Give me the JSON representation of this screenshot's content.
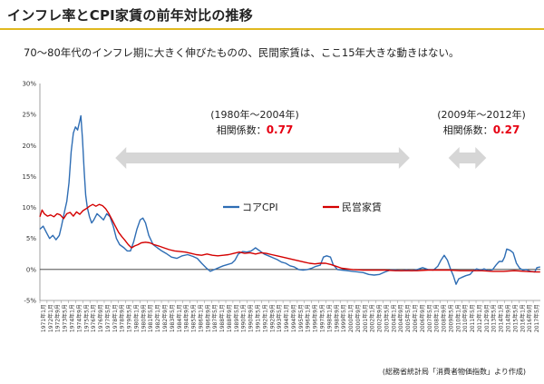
{
  "header": {
    "title": "インフレ率とCPI家賃の前年対比の推移",
    "subtitle": "70〜80年代のインフレ期に大きく伸びたものの、民間家賃は、ここ15年大きな動きはない。",
    "source": "(総務省統計局「消費者物価指数」より作成)"
  },
  "colors": {
    "title_rule": "#e0b81f",
    "core_cpi": "#2e6db4",
    "rent": "#d40000",
    "arrow": "#d6d6d6",
    "highlight": "#e60012"
  },
  "chart_data": {
    "type": "line",
    "ylim": [
      -5,
      30
    ],
    "yticks": [
      -5,
      0,
      5,
      10,
      15,
      20,
      25,
      30
    ],
    "ytick_labels": [
      "-5%",
      "0%",
      "5%",
      "10%",
      "15%",
      "20%",
      "25%",
      "30%"
    ],
    "xlim": [
      1971.0,
      2017.42
    ],
    "xtick_labels": [
      "1971年1月",
      "1972年1月",
      "1972年9月",
      "1973年5月",
      "1974年1月",
      "1974年9月",
      "1975年5月",
      "1976年1月",
      "1976年9月",
      "1977年5月",
      "1978年1月",
      "1978年9月",
      "1979年5月",
      "1980年1月",
      "1980年9月",
      "1981年5月",
      "1982年1月",
      "1982年9月",
      "1983年5月",
      "1984年1月",
      "1984年9月",
      "1985年5月",
      "1986年1月",
      "1986年9月",
      "1987年5月",
      "1988年1月",
      "1988年9月",
      "1989年5月",
      "1990年1月",
      "1990年9月",
      "1991年5月",
      "1992年1月",
      "1992年9月",
      "1993年5月",
      "1994年1月",
      "1994年9月",
      "1995年5月",
      "1996年1月",
      "1996年9月",
      "1997年5月",
      "1998年1月",
      "1998年9月",
      "1999年5月",
      "2000年1月",
      "2000年9月",
      "2001年5月",
      "2002年1月",
      "2002年9月",
      "2003年5月",
      "2004年1月",
      "2004年9月",
      "2005年5月",
      "2006年1月",
      "2006年9月",
      "2007年5月",
      "2008年1月",
      "2008年9月",
      "2009年5月",
      "2010年1月",
      "2010年9月",
      "2011年5月",
      "2012年1月",
      "2012年9月",
      "2013年5月",
      "2014年1月",
      "2014年9月",
      "2015年5月",
      "2016年1月",
      "2016年9月",
      "2017年5月"
    ],
    "series": [
      {
        "name": "コアCPI",
        "color": "#2e6db4",
        "points": [
          [
            1971.0,
            6.5
          ],
          [
            1971.3,
            7.0
          ],
          [
            1971.6,
            6.0
          ],
          [
            1971.9,
            5.0
          ],
          [
            1972.2,
            5.5
          ],
          [
            1972.5,
            4.8
          ],
          [
            1972.8,
            5.5
          ],
          [
            1973.0,
            7.0
          ],
          [
            1973.3,
            9.5
          ],
          [
            1973.5,
            11.0
          ],
          [
            1973.7,
            14.0
          ],
          [
            1973.9,
            19.0
          ],
          [
            1974.1,
            22.0
          ],
          [
            1974.3,
            23.0
          ],
          [
            1974.5,
            22.5
          ],
          [
            1974.7,
            24.0
          ],
          [
            1974.8,
            24.8
          ],
          [
            1974.95,
            21.0
          ],
          [
            1975.1,
            16.0
          ],
          [
            1975.25,
            12.0
          ],
          [
            1975.4,
            10.0
          ],
          [
            1975.6,
            8.5
          ],
          [
            1975.8,
            7.5
          ],
          [
            1976.0,
            8.0
          ],
          [
            1976.3,
            9.0
          ],
          [
            1976.6,
            8.5
          ],
          [
            1976.9,
            8.0
          ],
          [
            1977.2,
            9.0
          ],
          [
            1977.5,
            8.5
          ],
          [
            1977.8,
            7.0
          ],
          [
            1978.1,
            5.0
          ],
          [
            1978.4,
            4.0
          ],
          [
            1978.8,
            3.5
          ],
          [
            1979.1,
            3.0
          ],
          [
            1979.4,
            3.0
          ],
          [
            1979.7,
            4.5
          ],
          [
            1980.0,
            6.5
          ],
          [
            1980.3,
            8.0
          ],
          [
            1980.55,
            8.3
          ],
          [
            1980.8,
            7.5
          ],
          [
            1981.1,
            5.5
          ],
          [
            1981.5,
            4.0
          ],
          [
            1981.9,
            3.5
          ],
          [
            1982.3,
            3.0
          ],
          [
            1982.7,
            2.6
          ],
          [
            1983.2,
            2.0
          ],
          [
            1983.7,
            1.8
          ],
          [
            1984.2,
            2.2
          ],
          [
            1984.7,
            2.4
          ],
          [
            1985.2,
            2.1
          ],
          [
            1985.6,
            1.8
          ],
          [
            1986.0,
            1.0
          ],
          [
            1986.4,
            0.3
          ],
          [
            1986.8,
            -0.3
          ],
          [
            1987.2,
            0.0
          ],
          [
            1987.6,
            0.3
          ],
          [
            1988.0,
            0.6
          ],
          [
            1988.4,
            0.8
          ],
          [
            1988.8,
            1.0
          ],
          [
            1989.1,
            1.5
          ],
          [
            1989.4,
            2.5
          ],
          [
            1989.8,
            2.9
          ],
          [
            1990.2,
            2.8
          ],
          [
            1990.6,
            3.0
          ],
          [
            1991.0,
            3.5
          ],
          [
            1991.4,
            3.0
          ],
          [
            1991.8,
            2.5
          ],
          [
            1992.2,
            2.2
          ],
          [
            1992.6,
            1.9
          ],
          [
            1993.0,
            1.6
          ],
          [
            1993.4,
            1.2
          ],
          [
            1993.8,
            1.0
          ],
          [
            1994.2,
            0.6
          ],
          [
            1994.6,
            0.4
          ],
          [
            1995.0,
            0.0
          ],
          [
            1995.4,
            -0.1
          ],
          [
            1995.8,
            0.0
          ],
          [
            1996.2,
            0.2
          ],
          [
            1996.6,
            0.5
          ],
          [
            1997.0,
            0.7
          ],
          [
            1997.3,
            2.0
          ],
          [
            1997.6,
            2.2
          ],
          [
            1997.95,
            2.0
          ],
          [
            1998.2,
            0.8
          ],
          [
            1998.6,
            0.0
          ],
          [
            1999.0,
            -0.1
          ],
          [
            1999.5,
            -0.2
          ],
          [
            2000.0,
            -0.3
          ],
          [
            2000.5,
            -0.4
          ],
          [
            2001.0,
            -0.5
          ],
          [
            2001.5,
            -0.8
          ],
          [
            2002.0,
            -0.9
          ],
          [
            2002.5,
            -0.8
          ],
          [
            2003.0,
            -0.4
          ],
          [
            2003.5,
            -0.1
          ],
          [
            2004.0,
            -0.1
          ],
          [
            2004.5,
            -0.2
          ],
          [
            2005.0,
            -0.1
          ],
          [
            2005.5,
            -0.2
          ],
          [
            2006.0,
            0.0
          ],
          [
            2006.5,
            0.3
          ],
          [
            2007.0,
            0.0
          ],
          [
            2007.5,
            -0.1
          ],
          [
            2007.9,
            0.5
          ],
          [
            2008.2,
            1.5
          ],
          [
            2008.5,
            2.3
          ],
          [
            2008.8,
            1.5
          ],
          [
            2009.1,
            0.0
          ],
          [
            2009.35,
            -1.0
          ],
          [
            2009.6,
            -2.4
          ],
          [
            2009.85,
            -1.5
          ],
          [
            2010.1,
            -1.3
          ],
          [
            2010.5,
            -1.0
          ],
          [
            2010.9,
            -0.8
          ],
          [
            2011.2,
            -0.2
          ],
          [
            2011.5,
            0.1
          ],
          [
            2011.9,
            -0.1
          ],
          [
            2012.2,
            0.1
          ],
          [
            2012.6,
            -0.2
          ],
          [
            2013.0,
            0.0
          ],
          [
            2013.3,
            0.7
          ],
          [
            2013.6,
            1.3
          ],
          [
            2013.9,
            1.3
          ],
          [
            2014.1,
            2.0
          ],
          [
            2014.3,
            3.3
          ],
          [
            2014.6,
            3.1
          ],
          [
            2014.9,
            2.7
          ],
          [
            2015.2,
            1.0
          ],
          [
            2015.5,
            0.2
          ],
          [
            2015.8,
            -0.1
          ],
          [
            2016.1,
            0.0
          ],
          [
            2016.5,
            -0.3
          ],
          [
            2016.9,
            -0.4
          ],
          [
            2017.1,
            0.3
          ],
          [
            2017.4,
            0.4
          ]
        ]
      },
      {
        "name": "民営家賃",
        "color": "#d40000",
        "points": [
          [
            1971.0,
            8.5
          ],
          [
            1971.2,
            9.6
          ],
          [
            1971.4,
            9.0
          ],
          [
            1971.7,
            8.6
          ],
          [
            1972.0,
            8.8
          ],
          [
            1972.3,
            8.5
          ],
          [
            1972.6,
            9.0
          ],
          [
            1972.9,
            8.8
          ],
          [
            1973.2,
            8.2
          ],
          [
            1973.5,
            9.0
          ],
          [
            1973.8,
            9.2
          ],
          [
            1974.1,
            8.6
          ],
          [
            1974.4,
            9.3
          ],
          [
            1974.7,
            8.9
          ],
          [
            1975.0,
            9.5
          ],
          [
            1975.3,
            9.8
          ],
          [
            1975.6,
            10.2
          ],
          [
            1975.9,
            10.5
          ],
          [
            1976.2,
            10.2
          ],
          [
            1976.5,
            10.5
          ],
          [
            1976.8,
            10.3
          ],
          [
            1977.1,
            9.8
          ],
          [
            1977.4,
            9.0
          ],
          [
            1977.7,
            8.0
          ],
          [
            1978.0,
            7.0
          ],
          [
            1978.3,
            6.0
          ],
          [
            1978.6,
            5.3
          ],
          [
            1978.9,
            4.7
          ],
          [
            1979.2,
            4.0
          ],
          [
            1979.5,
            3.5
          ],
          [
            1979.8,
            3.8
          ],
          [
            1980.1,
            4.0
          ],
          [
            1980.4,
            4.3
          ],
          [
            1980.8,
            4.4
          ],
          [
            1981.2,
            4.3
          ],
          [
            1981.6,
            4.0
          ],
          [
            1982.0,
            3.8
          ],
          [
            1982.5,
            3.5
          ],
          [
            1983.0,
            3.2
          ],
          [
            1983.5,
            3.0
          ],
          [
            1984.0,
            2.9
          ],
          [
            1984.5,
            2.8
          ],
          [
            1985.0,
            2.6
          ],
          [
            1985.5,
            2.4
          ],
          [
            1986.0,
            2.3
          ],
          [
            1986.5,
            2.5
          ],
          [
            1987.0,
            2.3
          ],
          [
            1987.5,
            2.2
          ],
          [
            1988.0,
            2.3
          ],
          [
            1988.5,
            2.4
          ],
          [
            1989.0,
            2.6
          ],
          [
            1989.5,
            2.8
          ],
          [
            1990.0,
            2.6
          ],
          [
            1990.5,
            2.7
          ],
          [
            1991.0,
            2.5
          ],
          [
            1991.5,
            2.7
          ],
          [
            1992.0,
            2.6
          ],
          [
            1992.5,
            2.4
          ],
          [
            1993.0,
            2.2
          ],
          [
            1993.5,
            2.0
          ],
          [
            1994.0,
            1.8
          ],
          [
            1994.5,
            1.6
          ],
          [
            1995.0,
            1.4
          ],
          [
            1995.5,
            1.2
          ],
          [
            1996.0,
            1.0
          ],
          [
            1996.5,
            0.9
          ],
          [
            1997.0,
            1.0
          ],
          [
            1997.5,
            1.0
          ],
          [
            1998.0,
            0.8
          ],
          [
            1998.5,
            0.5
          ],
          [
            1999.0,
            0.2
          ],
          [
            1999.5,
            0.1
          ],
          [
            2000.0,
            0.0
          ],
          [
            2001.0,
            -0.1
          ],
          [
            2002.0,
            -0.1
          ],
          [
            2003.0,
            -0.1
          ],
          [
            2004.0,
            -0.2
          ],
          [
            2005.0,
            -0.2
          ],
          [
            2006.0,
            -0.2
          ],
          [
            2007.0,
            -0.1
          ],
          [
            2008.0,
            -0.1
          ],
          [
            2009.0,
            -0.1
          ],
          [
            2010.0,
            -0.2
          ],
          [
            2011.0,
            -0.2
          ],
          [
            2012.0,
            -0.2
          ],
          [
            2013.0,
            -0.3
          ],
          [
            2014.0,
            -0.3
          ],
          [
            2015.0,
            -0.2
          ],
          [
            2016.0,
            -0.3
          ],
          [
            2017.0,
            -0.4
          ],
          [
            2017.4,
            -0.4
          ]
        ]
      }
    ],
    "legend": [
      "コアCPI",
      "民営家賃"
    ],
    "annotations": [
      {
        "period": "(1980年〜2004年)",
        "label": "相関係数：",
        "value": "0.77",
        "arrow_from": 1978.0,
        "arrow_to": 2005.3
      },
      {
        "period": "(2009年〜2012年)",
        "label": "相関係数：",
        "value": "0.27",
        "arrow_from": 2008.9,
        "arrow_to": 2012.4
      }
    ]
  }
}
